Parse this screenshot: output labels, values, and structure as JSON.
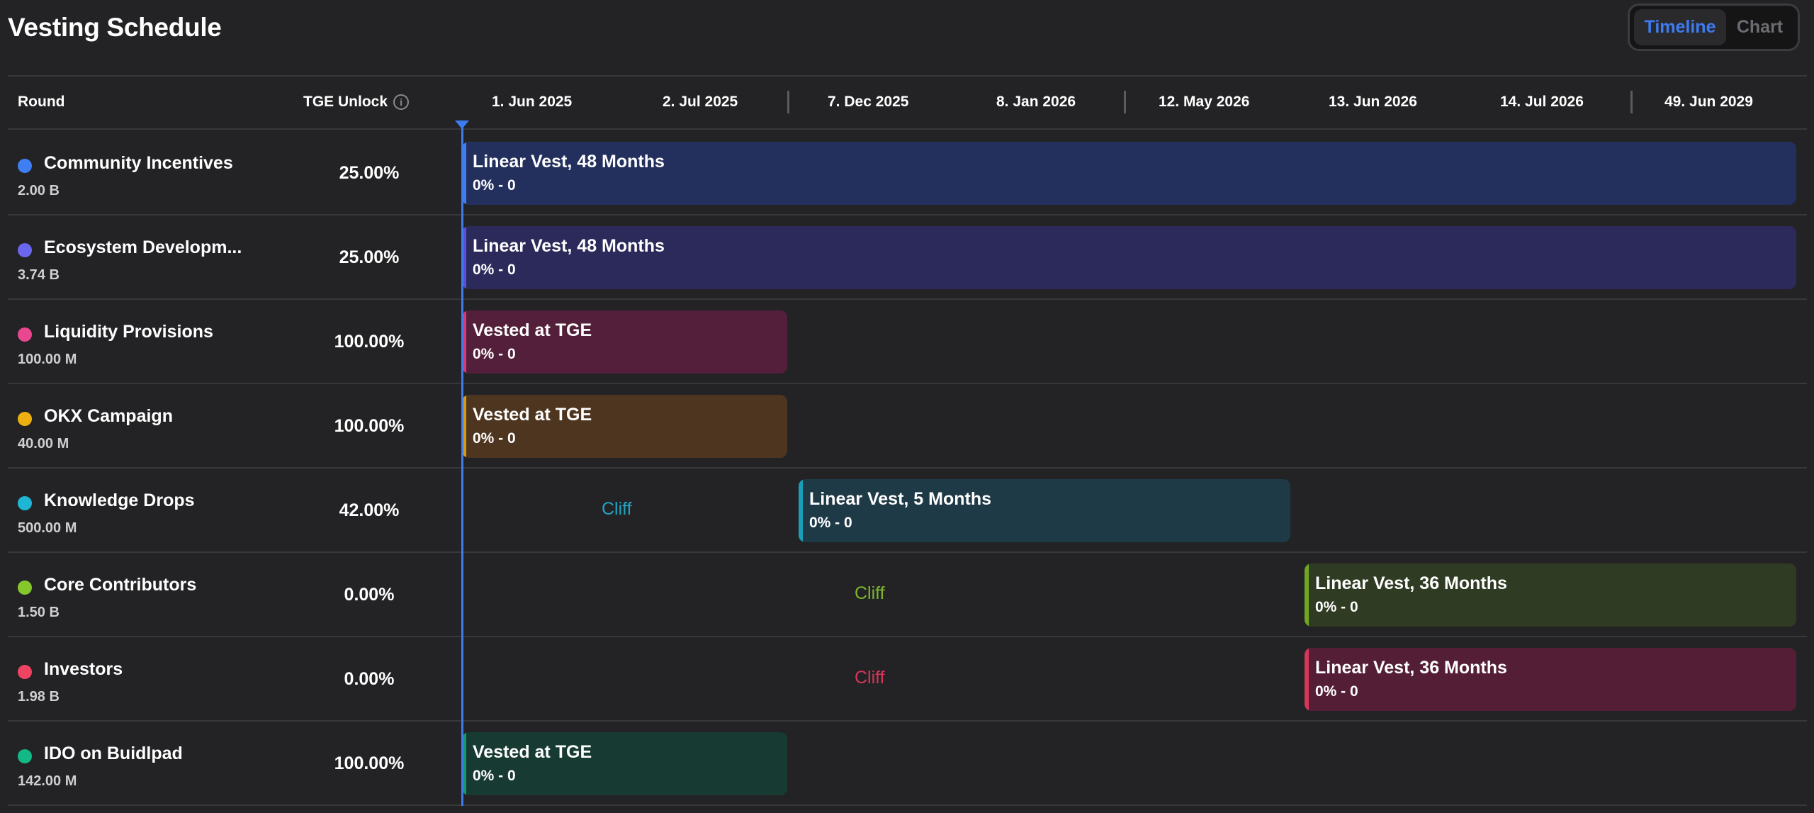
{
  "title": "Vesting Schedule",
  "view_toggle": {
    "active": "Timeline",
    "inactive": "Chart"
  },
  "columns": {
    "round": "Round",
    "tge_unlock": "TGE Unlock",
    "info_glyph": "i"
  },
  "timeline_dates": [
    "1. Jun 2025",
    "2. Jul 2025",
    "7. Dec 2025",
    "8. Jan 2026",
    "12. May 2026",
    "13. Jun 2026",
    "14. Jul 2026",
    "49. Jun 2029"
  ],
  "rows": [
    {
      "name": "Community Incentives",
      "amount": "2.00 B",
      "tge": "25.00%",
      "color": "#3f7ef3",
      "bar": {
        "title": "Linear Vest, 48 Months",
        "sub": "0% - 0",
        "bg": "#23305d",
        "edge": "#3f7ef3"
      },
      "cliff": ""
    },
    {
      "name": "Ecosystem Developm...",
      "amount": "3.74 B",
      "tge": "25.00%",
      "color": "#6a66ee",
      "bar": {
        "title": "Linear Vest, 48 Months",
        "sub": "0% - 0",
        "bg": "#2b2a5b",
        "edge": "#5a50e0"
      },
      "cliff": ""
    },
    {
      "name": "Liquidity Provisions",
      "amount": "100.00 M",
      "tge": "100.00%",
      "color": "#e9478f",
      "bar": {
        "title": "Vested at TGE",
        "sub": "0% - 0",
        "bg": "#541f3a",
        "edge": "#d8387e"
      },
      "cliff": ""
    },
    {
      "name": "OKX Campaign",
      "amount": "40.00 M",
      "tge": "100.00%",
      "color": "#eeb011",
      "bar": {
        "title": "Vested at TGE",
        "sub": "0% - 0",
        "bg": "#4e3520",
        "edge": "#d99a12"
      },
      "cliff": ""
    },
    {
      "name": "Knowledge Drops",
      "amount": "500.00 M",
      "tge": "42.00%",
      "color": "#1eb6d4",
      "bar": {
        "title": "Linear Vest, 5 Months",
        "sub": "0% - 0",
        "bg": "#1f3a47",
        "edge": "#1b9fb8"
      },
      "cliff": "Cliff",
      "cliff_color": "#23a3c4"
    },
    {
      "name": "Core Contributors",
      "amount": "1.50 B",
      "tge": "0.00%",
      "color": "#86c72c",
      "bar": {
        "title": "Linear Vest, 36 Months",
        "sub": "0% - 0",
        "bg": "#2f3b22",
        "edge": "#6fa622"
      },
      "cliff": "Cliff",
      "cliff_color": "#7cb72a"
    },
    {
      "name": "Investors",
      "amount": "1.98 B",
      "tge": "0.00%",
      "color": "#ee4462",
      "bar": {
        "title": "Linear Vest, 36 Months",
        "sub": "0% - 0",
        "bg": "#541f36",
        "edge": "#d6365a"
      },
      "cliff": "Cliff",
      "cliff_color": "#d8345a"
    },
    {
      "name": "IDO on Buidlpad",
      "amount": "142.00 M",
      "tge": "100.00%",
      "color": "#12b886",
      "bar": {
        "title": "Vested at TGE",
        "sub": "0% - 0",
        "bg": "#173a33",
        "edge": "#12996f"
      },
      "cliff": ""
    }
  ]
}
